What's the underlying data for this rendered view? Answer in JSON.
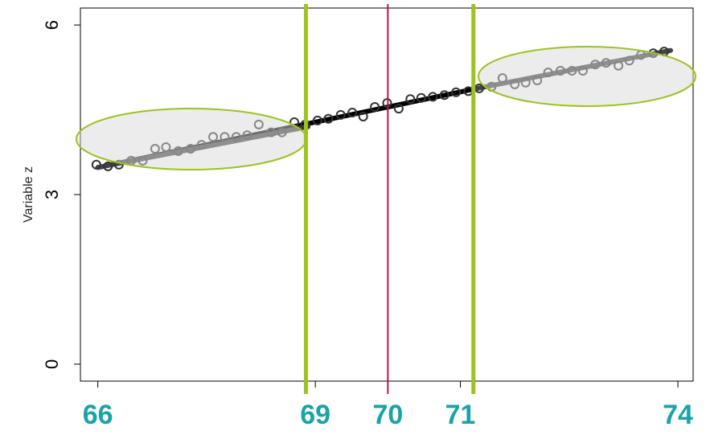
{
  "chart_data": {
    "type": "scatter",
    "y_label": "Variable z",
    "xlim": [
      65.76,
      74.21
    ],
    "ylim": [
      -0.3,
      6.3
    ],
    "xticks": [
      66,
      69,
      70,
      71,
      74
    ],
    "yticks": [
      0,
      3,
      6
    ],
    "x_tick_color": "#1aa3a8",
    "series": [
      {
        "color": "#333333",
        "x": [
          65.98,
          66.14,
          66.29,
          66.46,
          66.62,
          66.79,
          66.94,
          67.11,
          67.28,
          67.43,
          67.59,
          67.75,
          67.91,
          68.06,
          68.22,
          68.39,
          68.54,
          68.71,
          68.86,
          69.03,
          69.18,
          69.35,
          69.51,
          69.66,
          69.82,
          69.99,
          70.15,
          70.31,
          70.46,
          70.62,
          70.78,
          70.94,
          71.11,
          71.26,
          71.43,
          71.58,
          71.75,
          71.9,
          72.06,
          72.21,
          72.38,
          72.54,
          72.69,
          72.86,
          73.01,
          73.18,
          73.33,
          73.49,
          73.66,
          73.81
        ],
        "values": [
          3.53,
          3.5,
          3.53,
          3.6,
          3.6,
          3.81,
          3.84,
          3.77,
          3.81,
          3.88,
          4.02,
          4.02,
          4.02,
          4.05,
          4.24,
          4.1,
          4.1,
          4.28,
          4.24,
          4.31,
          4.34,
          4.41,
          4.45,
          4.38,
          4.55,
          4.62,
          4.52,
          4.69,
          4.71,
          4.73,
          4.76,
          4.81,
          4.83,
          4.88,
          4.91,
          5.06,
          4.95,
          4.98,
          5.02,
          5.16,
          5.19,
          5.19,
          5.19,
          5.3,
          5.33,
          5.28,
          5.37,
          5.47,
          5.5,
          5.53
        ]
      }
    ],
    "fits": [
      {
        "color": "#000000",
        "x": [
          66.0,
          71.2
        ],
        "y": [
          3.48,
          4.87
        ]
      },
      {
        "color": "#444444",
        "x": [
          66.0,
          68.9
        ],
        "y": [
          3.48,
          4.2
        ]
      },
      {
        "color": "#444444",
        "x": [
          71.2,
          73.9
        ],
        "y": [
          4.87,
          5.55
        ]
      }
    ],
    "vlines": [
      {
        "x": 68.87,
        "color": "#9cc31f"
      },
      {
        "x": 70,
        "color": "#b0174a"
      },
      {
        "x": 71.18,
        "color": "#9cc31f"
      }
    ]
  }
}
